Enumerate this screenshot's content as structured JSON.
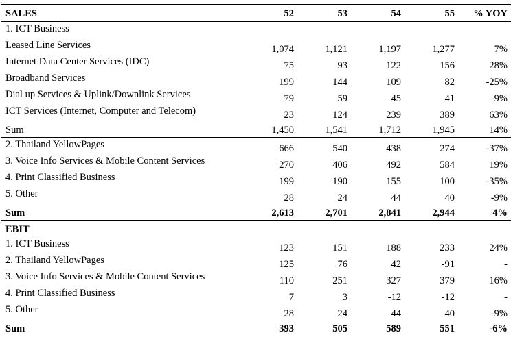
{
  "header": {
    "label": "SALES",
    "cols": [
      "52",
      "53",
      "54",
      "55",
      "% YOY"
    ]
  },
  "sales_rows": [
    {
      "label": "1. ICT Business",
      "values": [
        "",
        "",
        "",
        "",
        ""
      ]
    },
    {
      "label": "Leased Line Services",
      "values": [
        "1,074",
        "1,121",
        "1,197",
        "1,277",
        "7%"
      ]
    },
    {
      "label": "Internet Data Center Services (IDC)",
      "values": [
        "75",
        "93",
        "122",
        "156",
        "28%"
      ]
    },
    {
      "label": "Broadband Services",
      "values": [
        "199",
        "144",
        "109",
        "82",
        "-25%"
      ]
    },
    {
      "label": "Dial up Services & Uplink/Downlink Services",
      "values": [
        "79",
        "59",
        "45",
        "41",
        "-9%"
      ]
    },
    {
      "label": "ICT Services (Internet, Computer and Telecom)",
      "values": [
        "23",
        "124",
        "239",
        "389",
        "63%"
      ]
    },
    {
      "label": "Sum",
      "values": [
        "1,450",
        "1,541",
        "1,712",
        "1,945",
        "14%"
      ]
    },
    {
      "label": "2. Thailand YellowPages",
      "values": [
        "666",
        "540",
        "438",
        "274",
        "-37%"
      ]
    },
    {
      "label": "3. Voice Info Services & Mobile Content Services",
      "values": [
        "270",
        "406",
        "492",
        "584",
        "19%"
      ]
    },
    {
      "label": "4. Print Classified Business",
      "values": [
        "199",
        "190",
        "155",
        "100",
        "-35%"
      ]
    },
    {
      "label": "5. Other",
      "values": [
        "28",
        "24",
        "44",
        "40",
        "-9%"
      ]
    },
    {
      "label": "Sum",
      "values": [
        "2,613",
        "2,701",
        "2,841",
        "2,944",
        "4%"
      ]
    }
  ],
  "ebit_header": "EBIT",
  "ebit_rows": [
    {
      "label": "1. ICT Business",
      "values": [
        "123",
        "151",
        "188",
        "233",
        "24%"
      ]
    },
    {
      "label": "2. Thailand YellowPages",
      "values": [
        "125",
        "76",
        "42",
        "-91",
        "-"
      ]
    },
    {
      "label": "3. Voice Info Services & Mobile Content Services",
      "values": [
        "110",
        "251",
        "327",
        "379",
        "16%"
      ]
    },
    {
      "label": "4. Print Classified Business",
      "values": [
        "7",
        "3",
        "-12",
        "-12",
        "-"
      ]
    },
    {
      "label": "5. Other",
      "values": [
        "28",
        "24",
        "44",
        "40",
        "-9%"
      ]
    },
    {
      "label": "Sum",
      "values": [
        "393",
        "505",
        "589",
        "551",
        "-6%"
      ]
    }
  ]
}
